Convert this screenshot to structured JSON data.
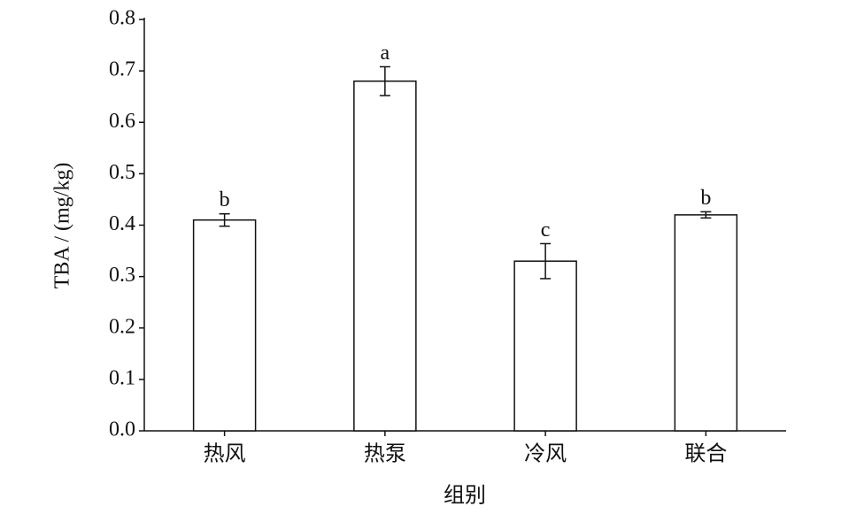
{
  "chart_data": {
    "type": "bar",
    "y_label": "TBA / (mg/kg)",
    "x_label": "组别",
    "categories": [
      "热风",
      "热泵",
      "冷风",
      "联合"
    ],
    "values": [
      0.41,
      0.68,
      0.33,
      0.42
    ],
    "errors": [
      0.012,
      0.028,
      0.034,
      0.006
    ],
    "significance_labels": [
      "b",
      "a",
      "c",
      "b"
    ],
    "color": "#ffffff",
    "ylim": [
      0,
      0.8
    ],
    "yticks": [
      {
        "value": 0,
        "label": "0.0"
      },
      0.1,
      0.2,
      0.3,
      0.4,
      0.5,
      0.6,
      0.7,
      0.8
    ]
  }
}
